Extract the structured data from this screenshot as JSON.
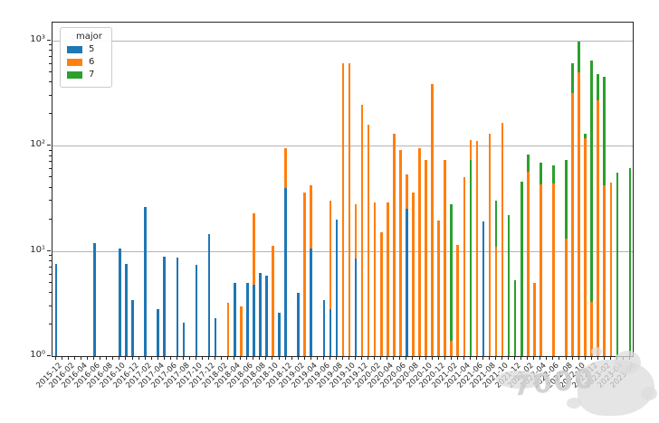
{
  "legend": {
    "title": "major",
    "entries": [
      {
        "label": "5",
        "color": "#1f77b4"
      },
      {
        "label": "6",
        "color": "#ff7f0e"
      },
      {
        "label": "7",
        "color": "#2ca02c"
      }
    ]
  },
  "y_axis": {
    "tick_labels": [
      "10⁰",
      "10¹",
      "10²",
      "10³"
    ],
    "tick_values": [
      1,
      10,
      100,
      1000
    ]
  },
  "x_axis": {
    "tick_labels": [
      "2015-12",
      "2016-02",
      "2016-04",
      "2016-06",
      "2016-08",
      "2016-10",
      "2016-12",
      "2017-02",
      "2017-04",
      "2017-06",
      "2017-08",
      "2017-10",
      "2017-12",
      "2018-02",
      "2018-04",
      "2018-06",
      "2018-08",
      "2018-10",
      "2018-12",
      "2019-02",
      "2019-04",
      "2019-06",
      "2019-08",
      "2019-10",
      "2019-12",
      "2020-02",
      "2020-04",
      "2020-06",
      "2020-08",
      "2020-10",
      "2020-12",
      "2021-02",
      "2021-04",
      "2021-06",
      "2021-08",
      "2021-10",
      "2021-12",
      "2022-02",
      "2022-04",
      "2022-06",
      "2022-08",
      "2022-10",
      "2022-12",
      "2023-02",
      "2023-04",
      "2023-06"
    ]
  },
  "watermark": {
    "text": "7000"
  },
  "chart_data": {
    "type": "bar",
    "scale": "log",
    "title": "",
    "xlabel": "",
    "ylabel": "",
    "ylim": [
      1,
      1500
    ],
    "grid": "horizontal",
    "legend_position": "upper left",
    "x_start": "2015-12",
    "x_end": "2023-06",
    "x_step_months": 1,
    "series_key": "major",
    "hue_colors": {
      "5": "#1f77b4",
      "6": "#ff7f0e",
      "7": "#2ca02c"
    },
    "bars": [
      {
        "month": "2015-12",
        "values": {
          "5": 7.5
        }
      },
      {
        "month": "2016-06",
        "values": {
          "5": 12
        }
      },
      {
        "month": "2016-10",
        "values": {
          "5": 10.5
        }
      },
      {
        "month": "2016-11",
        "values": {
          "5": 7.5
        }
      },
      {
        "month": "2016-12",
        "values": {
          "5": 3.4
        }
      },
      {
        "month": "2017-02",
        "values": {
          "5": 26
        }
      },
      {
        "month": "2017-04",
        "values": {
          "5": 2.8
        }
      },
      {
        "month": "2017-05",
        "values": {
          "5": 8.9
        }
      },
      {
        "month": "2017-07",
        "values": {
          "5": 8.7
        }
      },
      {
        "month": "2017-08",
        "values": {
          "5": 2.1
        }
      },
      {
        "month": "2017-10",
        "values": {
          "5": 7.4
        }
      },
      {
        "month": "2017-12",
        "values": {
          "5": 14.5
        }
      },
      {
        "month": "2018-01",
        "values": {
          "5": 2.3
        }
      },
      {
        "month": "2018-03",
        "values": {
          "6": 3.2
        }
      },
      {
        "month": "2018-04",
        "values": {
          "5": 5.0
        }
      },
      {
        "month": "2018-05",
        "values": {
          "6": 3.0
        }
      },
      {
        "month": "2018-06",
        "values": {
          "5": 5.0
        }
      },
      {
        "month": "2018-07",
        "values": {
          "5": 4.8,
          "6": 23
        }
      },
      {
        "month": "2018-08",
        "values": {
          "5": 6.2
        }
      },
      {
        "month": "2018-09",
        "values": {
          "5": 5.8
        }
      },
      {
        "month": "2018-10",
        "values": {
          "6": 11.2
        }
      },
      {
        "month": "2018-11",
        "values": {
          "5": 2.6
        }
      },
      {
        "month": "2018-12",
        "values": {
          "5": 40,
          "6": 95
        }
      },
      {
        "month": "2019-02",
        "values": {
          "5": 4.0
        }
      },
      {
        "month": "2019-03",
        "values": {
          "6": 36
        }
      },
      {
        "month": "2019-04",
        "values": {
          "5": 10.6,
          "6": 42
        }
      },
      {
        "month": "2019-06",
        "values": {
          "5": 3.4
        }
      },
      {
        "month": "2019-07",
        "values": {
          "5": 2.8,
          "6": 30
        }
      },
      {
        "month": "2019-08",
        "values": {
          "5": 20
        }
      },
      {
        "month": "2019-09",
        "values": {
          "6": 610
        }
      },
      {
        "month": "2019-10",
        "values": {
          "6": 610
        }
      },
      {
        "month": "2019-11",
        "values": {
          "5": 8.5,
          "6": 28
        }
      },
      {
        "month": "2019-12",
        "values": {
          "6": 245
        }
      },
      {
        "month": "2020-01",
        "values": {
          "6": 160
        }
      },
      {
        "month": "2020-02",
        "values": {
          "6": 29
        }
      },
      {
        "month": "2020-03",
        "values": {
          "6": 15
        }
      },
      {
        "month": "2020-04",
        "values": {
          "6": 29
        }
      },
      {
        "month": "2020-05",
        "values": {
          "6": 130
        }
      },
      {
        "month": "2020-06",
        "values": {
          "6": 91
        }
      },
      {
        "month": "2020-07",
        "values": {
          "5": 25,
          "6": 53
        }
      },
      {
        "month": "2020-08",
        "values": {
          "6": 36
        }
      },
      {
        "month": "2020-09",
        "values": {
          "6": 95
        }
      },
      {
        "month": "2020-10",
        "values": {
          "6": 73
        }
      },
      {
        "month": "2020-11",
        "values": {
          "6": 385
        }
      },
      {
        "month": "2020-12",
        "values": {
          "6": 19.5
        }
      },
      {
        "month": "2021-01",
        "values": {
          "6": 74
        }
      },
      {
        "month": "2021-02",
        "values": {
          "6": 1.4,
          "7": 28
        }
      },
      {
        "month": "2021-03",
        "values": {
          "6": 11.4
        }
      },
      {
        "month": "2021-04",
        "values": {
          "6": 50
        }
      },
      {
        "month": "2021-05",
        "values": {
          "6": 114,
          "7": 74
        }
      },
      {
        "month": "2021-06",
        "values": {
          "6": 112
        }
      },
      {
        "month": "2021-07",
        "values": {
          "5": 19
        }
      },
      {
        "month": "2021-08",
        "values": {
          "6": 130
        }
      },
      {
        "month": "2021-09",
        "values": {
          "6": 11,
          "7": 30
        }
      },
      {
        "month": "2021-10",
        "values": {
          "6": 164
        }
      },
      {
        "month": "2021-11",
        "values": {
          "7": 22
        }
      },
      {
        "month": "2021-12",
        "values": {
          "7": 5.3
        }
      },
      {
        "month": "2022-01",
        "values": {
          "7": 46
        }
      },
      {
        "month": "2022-02",
        "values": {
          "6": 57,
          "7": 83
        }
      },
      {
        "month": "2022-03",
        "values": {
          "6": 5.0
        }
      },
      {
        "month": "2022-04",
        "values": {
          "6": 43,
          "7": 69
        }
      },
      {
        "month": "2022-06",
        "values": {
          "6": 44,
          "7": 65
        }
      },
      {
        "month": "2022-08",
        "values": {
          "6": 13,
          "7": 73
        }
      },
      {
        "month": "2022-09",
        "values": {
          "6": 320,
          "7": 610
        }
      },
      {
        "month": "2022-10",
        "values": {
          "6": 500,
          "7": 980
        }
      },
      {
        "month": "2022-11",
        "values": {
          "6": 118,
          "7": 130
        }
      },
      {
        "month": "2022-12",
        "values": {
          "6": 3.3,
          "7": 650
        }
      },
      {
        "month": "2023-01",
        "values": {
          "6": 270,
          "7": 480
        }
      },
      {
        "month": "2023-02",
        "values": {
          "6": 42,
          "7": 455
        }
      },
      {
        "month": "2023-03",
        "values": {
          "6": 45
        }
      },
      {
        "month": "2023-04",
        "values": {
          "7": 56
        }
      },
      {
        "month": "2023-06",
        "values": {
          "7": 62
        }
      }
    ]
  }
}
